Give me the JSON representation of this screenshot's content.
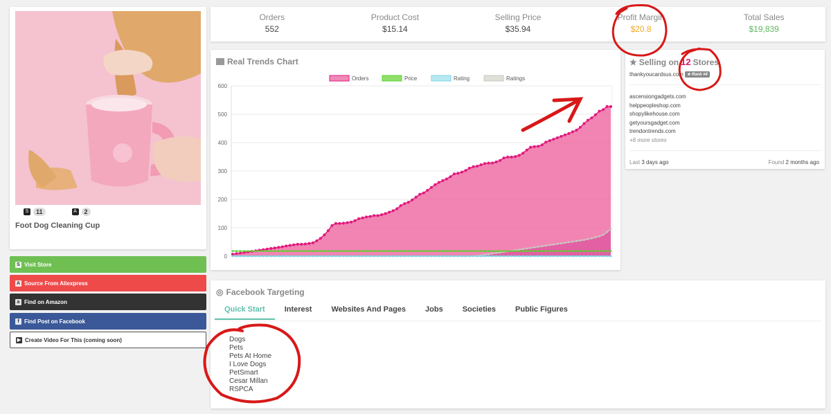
{
  "product": {
    "title": "Foot Dog Cleaning Cup",
    "image_alt": "dog paw in pink cleaning cup",
    "badges": [
      {
        "icon": "shopify-icon",
        "count": "11"
      },
      {
        "icon": "aliexpress-icon",
        "count": "2"
      }
    ]
  },
  "actions": {
    "visit_store": "Visit Store",
    "source_aliexpress": "Source From Aliexpress",
    "find_amazon": "Find on Amazon",
    "find_facebook": "Find Post on Facebook",
    "create_video": "Create Video For This (coming soon)"
  },
  "stats": {
    "orders_label": "Orders",
    "orders_value": "552",
    "cost_label": "Product Cost",
    "cost_value": "$15.14",
    "price_label": "Selling Price",
    "price_value": "$35.94",
    "margin_label": "Profit Margin",
    "margin_value": "$20.8",
    "sales_label": "Total Sales",
    "sales_value": "$19,839"
  },
  "colors": {
    "orders": "#e0197d",
    "price": "#5cd02f",
    "rating": "#7fd3e6",
    "ratings": "#c8c8c0",
    "annotation": "#d81818"
  },
  "chart_card": {
    "title": "Real Trends Chart"
  },
  "chart_data": {
    "type": "area",
    "title": "",
    "xlabel": "",
    "ylabel": "",
    "ylim": [
      0,
      600
    ],
    "yticks": [
      "0",
      "100",
      "200",
      "300",
      "400",
      "500",
      "600"
    ],
    "legend": "top",
    "series": [
      {
        "name": "Orders",
        "values": [
          7,
          9,
          11,
          13,
          15,
          17,
          19,
          21,
          23,
          25,
          27,
          29,
          31,
          33,
          36,
          38,
          40,
          42,
          42,
          43,
          45,
          47,
          54,
          63,
          75,
          90,
          108,
          115,
          115,
          116,
          118,
          120,
          125,
          132,
          135,
          138,
          140,
          143,
          143,
          146,
          150,
          155,
          160,
          167,
          178,
          185,
          190,
          198,
          208,
          218,
          223,
          232,
          242,
          252,
          260,
          266,
          272,
          280,
          290,
          292,
          296,
          302,
          310,
          315,
          317,
          322,
          326,
          328,
          328,
          332,
          337,
          346,
          349,
          349,
          351,
          355,
          363,
          374,
          384,
          386,
          387,
          392,
          402,
          407,
          412,
          417,
          422,
          427,
          432,
          438,
          444,
          454,
          467,
          479,
          487,
          498,
          511,
          516,
          527,
          527
        ]
      },
      {
        "name": "Price",
        "values": [
          18,
          18,
          18,
          18,
          18,
          18,
          18,
          18,
          18,
          18,
          18,
          18,
          18,
          18,
          18,
          18,
          18,
          18,
          18,
          18,
          18,
          18,
          18,
          18,
          18,
          18,
          18,
          18,
          18,
          18,
          18,
          18,
          18,
          18,
          18,
          18,
          18,
          18,
          18,
          18,
          18,
          18,
          18,
          18,
          18,
          18,
          18,
          18,
          18,
          18,
          18,
          18,
          18,
          18,
          18,
          18,
          18,
          18,
          18,
          18,
          18,
          18,
          18,
          18,
          18,
          18,
          18,
          18,
          18,
          18,
          18,
          18,
          18,
          18,
          18,
          18,
          18,
          18,
          18,
          18,
          18,
          18,
          18,
          18,
          18,
          18,
          18,
          18,
          18,
          18,
          18,
          18,
          18,
          18,
          18,
          18,
          18,
          18,
          18,
          18
        ]
      },
      {
        "name": "Rating",
        "values": [
          0,
          0,
          0,
          0,
          0,
          0,
          0,
          0,
          0,
          0,
          0,
          0,
          0,
          0,
          0,
          0,
          0,
          0,
          0,
          0,
          0,
          0,
          0,
          0,
          0,
          0,
          0,
          0,
          0,
          0,
          0,
          0,
          0,
          0,
          0,
          0,
          0,
          0,
          0,
          0,
          0,
          0,
          0,
          0,
          0,
          0,
          0,
          0,
          0,
          0,
          0,
          0,
          0,
          0,
          0,
          0,
          0,
          0,
          0,
          0,
          0,
          0,
          0,
          0,
          0,
          0,
          0,
          0,
          0,
          0,
          0,
          0,
          0,
          0,
          0,
          0,
          0,
          0,
          0,
          0,
          0,
          0,
          0,
          0,
          0,
          0,
          0,
          0,
          0,
          0,
          0,
          0,
          0,
          0,
          0,
          0,
          0,
          0,
          0,
          0
        ]
      },
      {
        "name": "Ratings",
        "values": [
          0,
          0,
          0,
          0,
          0,
          0,
          0,
          0,
          0,
          0,
          0,
          0,
          0,
          0,
          0,
          0,
          0,
          0,
          0,
          0,
          0,
          0,
          0,
          0,
          0,
          0,
          0,
          0,
          0,
          0,
          0,
          0,
          0,
          0,
          0,
          0,
          0,
          0,
          0,
          0,
          0,
          0,
          0,
          0,
          0,
          0,
          0,
          0,
          0,
          0,
          0,
          0,
          0,
          0,
          0,
          0,
          0,
          0,
          0,
          0,
          0,
          0,
          0,
          1,
          2,
          3,
          5,
          7,
          9,
          11,
          13,
          15,
          17,
          19,
          21,
          23,
          25,
          27,
          29,
          31,
          33,
          35,
          37,
          39,
          41,
          43,
          45,
          47,
          49,
          51,
          53,
          55,
          57,
          60,
          63,
          66,
          70,
          75,
          85,
          95
        ]
      }
    ]
  },
  "stores": {
    "title_prefix": "Selling on",
    "count": "12",
    "title_suffix": "Stores",
    "top_store": "thankyoucardsus.com",
    "rank": "★ Rank #4",
    "list": [
      "ascensiongadgets.com",
      "helppeopleshop.com",
      "shopylikehouse.com",
      "getyoursgadget.com",
      "trendontrends.com"
    ],
    "more": "+6 more stores",
    "last_label": "Last",
    "last_value": "3 days ago",
    "found_label": "Found",
    "found_value": "2 months ago"
  },
  "facebook": {
    "title": "Facebook Targeting",
    "tabs": [
      "Quick Start",
      "Interest",
      "Websites And Pages",
      "Jobs",
      "Societies",
      "Public Figures"
    ],
    "interests": [
      "Dogs",
      "Pets",
      "Pets At Home",
      "I Love Dogs",
      "PetSmart",
      "Cesar Millan",
      "RSPCA"
    ]
  }
}
